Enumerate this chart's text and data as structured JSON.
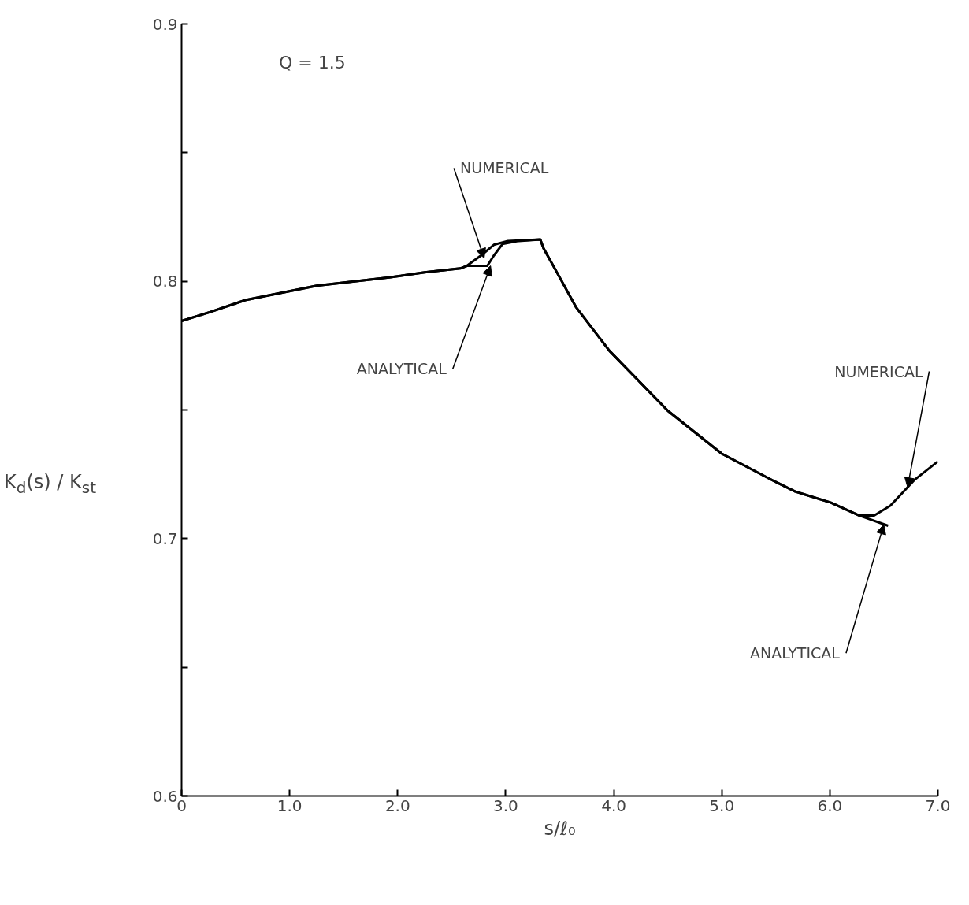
{
  "chart_data": {
    "type": "line",
    "xlabel": "s/ℓ₀",
    "ylabel": "K$_{d}$(s) / K$_{st}$",
    "xlim": [
      0,
      7
    ],
    "ylim": [
      0.6,
      0.9
    ],
    "xticks": [
      0,
      {
        "value": 1,
        "label": "1.0"
      },
      {
        "value": 2,
        "label": "2.0"
      },
      {
        "value": 3,
        "label": "3.0"
      },
      {
        "value": 4,
        "label": "4.0"
      },
      {
        "value": 5,
        "label": "5.0"
      },
      {
        "value": 6,
        "label": "6.0"
      },
      {
        "value": 7,
        "label": "7.0"
      }
    ],
    "yticks": [
      0.6,
      {
        "value": 0.65,
        "label": null
      },
      0.7,
      {
        "value": 0.75,
        "label": null
      },
      0.8,
      {
        "value": 0.85,
        "label": null
      },
      0.9
    ],
    "grid": false,
    "line_style": "solid",
    "marker": "none",
    "series": [
      {
        "color": "#000000",
        "x": [
          0,
          0.26,
          0.59,
          1.25,
          1.92,
          2.25,
          2.58,
          2.64,
          2.77,
          2.89,
          3.02,
          3.32,
          3.35,
          3.48,
          3.65,
          3.96,
          4.5,
          5.0,
          5.5,
          5.68,
          6.01,
          6.27,
          6.41,
          6.56,
          6.67,
          6.78,
          7.0
        ],
        "values": [
          0.7846,
          0.788,
          0.7927,
          0.7983,
          0.8015,
          0.8035,
          0.805,
          0.806,
          0.81,
          0.8142,
          0.8157,
          0.8163,
          0.8128,
          0.803,
          0.79,
          0.773,
          0.7497,
          0.733,
          0.722,
          0.7183,
          0.714,
          0.709,
          0.709,
          0.7128,
          0.7177,
          0.7227,
          0.73
        ]
      },
      {
        "color": "#000000",
        "x": [
          0,
          0.26,
          0.59,
          1.25,
          1.92,
          2.25,
          2.58,
          2.64,
          2.83,
          2.89,
          2.97,
          3.12,
          3.32,
          3.35,
          3.48,
          3.65,
          3.96,
          4.5,
          5.0,
          5.5,
          5.68,
          6.01,
          6.27,
          6.54
        ],
        "values": [
          0.7846,
          0.788,
          0.7927,
          0.7983,
          0.8015,
          0.8035,
          0.805,
          0.806,
          0.806,
          0.81,
          0.8145,
          0.8157,
          0.8163,
          0.8128,
          0.803,
          0.79,
          0.773,
          0.7497,
          0.733,
          0.722,
          0.7183,
          0.714,
          0.709,
          0.705
        ]
      }
    ],
    "annotations": [
      "Q = 1.5",
      {
        "text": "NUMERICAL",
        "x": 2.8,
        "y": 0.809
      },
      {
        "text": "ANALYTICAL",
        "x": 2.86,
        "y": 0.806
      },
      {
        "text": "NUMERICAL",
        "x": 6.72,
        "y": 0.72
      },
      {
        "text": "ANALYTICAL",
        "x": 6.5,
        "y": 0.7055
      }
    ]
  }
}
